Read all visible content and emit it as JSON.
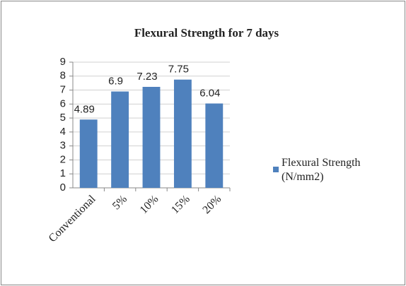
{
  "chart_data": {
    "type": "bar",
    "title": "Flexural Strength for 7 days",
    "categories": [
      "Conventional",
      "5%",
      "10%",
      "15%",
      "20%"
    ],
    "series": [
      {
        "name": "Flexural Strength (N/mm2)",
        "color": "#4f81bd",
        "values": [
          4.89,
          6.9,
          7.23,
          7.75,
          6.04
        ]
      }
    ],
    "ylim": [
      0,
      9
    ],
    "yticks": [
      0,
      1,
      2,
      3,
      4,
      5,
      6,
      7,
      8,
      9
    ],
    "grid": true,
    "legend": "right"
  }
}
